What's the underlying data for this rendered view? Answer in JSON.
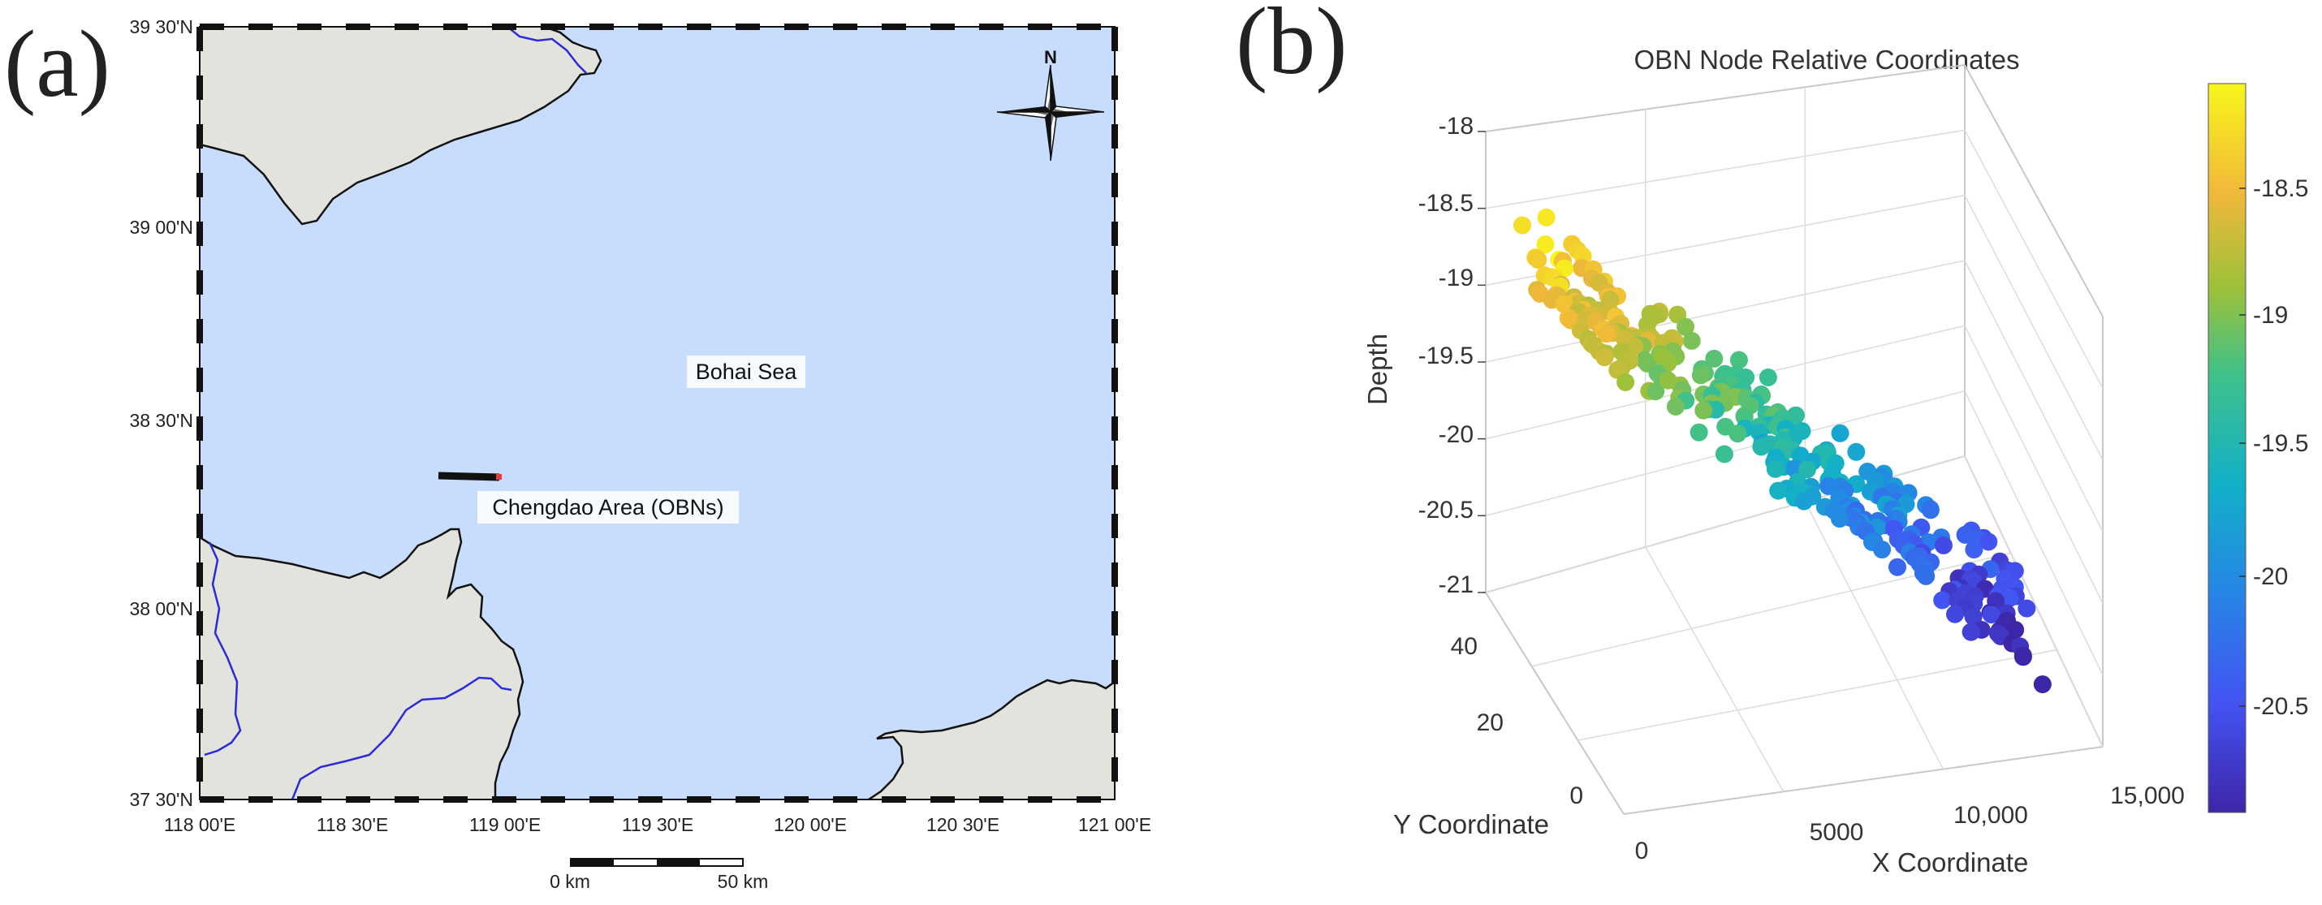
{
  "panel_a": {
    "letter": "(a)",
    "lat_ticks": [
      "39 30'N",
      "39 00'N",
      "38 30'N",
      "38 00'N",
      "37 30'N"
    ],
    "lon_ticks": [
      "118 00'E",
      "118 30'E",
      "119 00'E",
      "119 30'E",
      "120 00'E",
      "120 30'E",
      "121 00'E"
    ],
    "sea_label": "Bohai Sea",
    "area_label": "Chengdao Area (OBNs)",
    "compass_label": "N",
    "scale_start": "0 km",
    "scale_end": "50 km",
    "colors": {
      "sea": "#c8dcfd",
      "land": "#e3e3dd",
      "river": "#2b2bd9",
      "coast": "#111111"
    }
  },
  "panel_b": {
    "letter": "(b)",
    "chart_data": {
      "type": "scatter",
      "title": "OBN Node Relative Coordinates",
      "xlabel": "X Coordinate",
      "ylabel": "Y Coordinate",
      "zlabel": "Depth",
      "x_ticks": [
        "0",
        "5000",
        "10,000",
        "15,000"
      ],
      "y_ticks": [
        "0",
        "20",
        "40"
      ],
      "z_ticks": [
        "-18",
        "-18.5",
        "-19",
        "-19.5",
        "-20",
        "-20.5",
        "-21"
      ],
      "xlim": [
        0,
        15000
      ],
      "ylim": [
        0,
        45
      ],
      "zlim": [
        -21,
        -18
      ],
      "colorbar": {
        "ticks": [
          "-18.5",
          "-19",
          "-19.5",
          "-20",
          "-20.5"
        ],
        "range": [
          -20.9,
          -18.1
        ],
        "colormap": "parula"
      },
      "grid": true,
      "points_note_hidden": null,
      "trend": {
        "x_range": [
          0,
          14500
        ],
        "y_range": [
          15,
          32
        ],
        "depth_start": -18.3,
        "depth_end": -20.8,
        "count": 320
      }
    }
  }
}
